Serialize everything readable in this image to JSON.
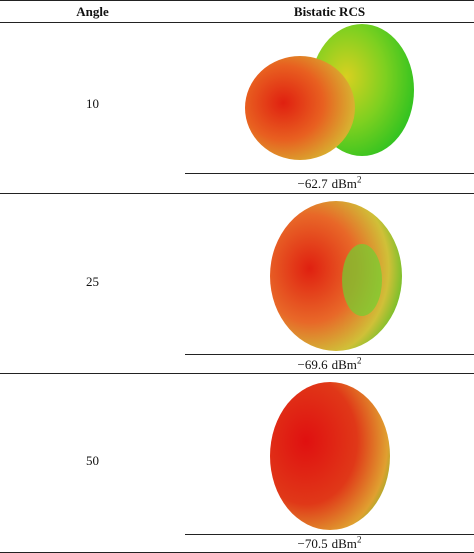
{
  "table": {
    "header": [
      "Angle",
      "Bistatic RCS"
    ],
    "rows": [
      {
        "angle": "10",
        "rcs": {
          "value": "−62.7",
          "unit": "dBm",
          "power": "2"
        }
      },
      {
        "angle": "25",
        "rcs": {
          "value": "−69.6",
          "unit": "dBm",
          "power": "2"
        }
      },
      {
        "angle": "50",
        "rcs": {
          "value": "−70.5",
          "unit": "dBm",
          "power": "2"
        }
      }
    ]
  }
}
